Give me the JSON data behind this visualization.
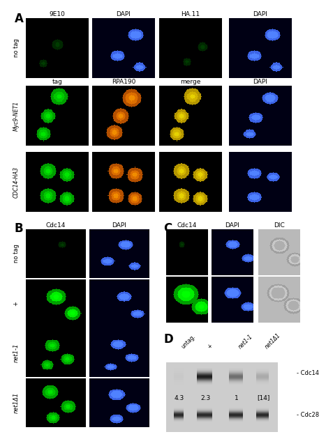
{
  "panel_A_label": "A",
  "panel_B_label": "B",
  "panel_C_label": "C",
  "panel_D_label": "D",
  "row0_col_labels": [
    "9E10",
    "DAPI",
    "HA.11",
    "DAPI"
  ],
  "row1_col_labels": [
    "tag",
    "RPA190",
    "merge",
    "DAPI"
  ],
  "row_A_labels": [
    "no tag",
    "Myc9-NET1",
    "CDC14-HA3"
  ],
  "row_B_labels": [
    "no tag",
    "+",
    "net1-1",
    "net1Δ1"
  ],
  "col_B_labels": [
    "Cdc14",
    "DAPI"
  ],
  "col_C_labels": [
    "Cdc14",
    "DAPI",
    "DIC"
  ],
  "western_lanes": [
    "untag.",
    "+",
    "net1-1",
    "net1Δ1"
  ],
  "western_numbers": [
    "4.3",
    "2.3",
    "1",
    "[14]"
  ],
  "western_label_cdc14": "- Cdc14",
  "western_label_cdc28": "- Cdc28",
  "fig_bg": "#ffffff"
}
